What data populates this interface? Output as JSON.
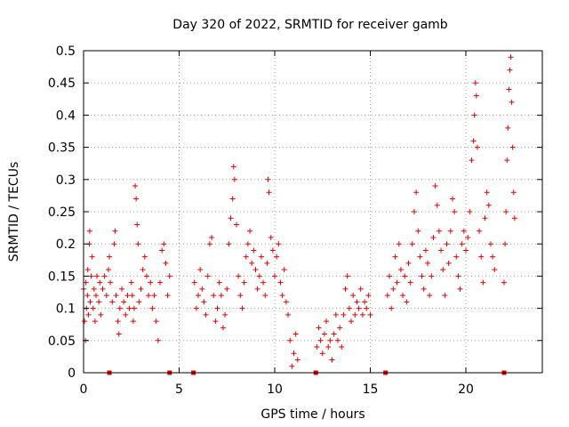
{
  "chart_data": {
    "type": "scatter",
    "title": "Day 320 of 2022, SRMTID for receiver gamb",
    "xlabel": "GPS time / hours",
    "ylabel": "SRMTID / TECUs",
    "xlim": [
      0,
      24
    ],
    "ylim": [
      0,
      0.5
    ],
    "xticks": [
      0,
      5,
      10,
      15,
      20
    ],
    "xtick_labels": [
      "0",
      "5",
      "10",
      "15",
      "20"
    ],
    "yticks": [
      0,
      0.05,
      0.1,
      0.15,
      0.2,
      0.25,
      0.3,
      0.35,
      0.4,
      0.45,
      0.5
    ],
    "ytick_labels": [
      "0",
      "0.05",
      "0.1",
      "0.15",
      "0.2",
      "0.25",
      "0.3",
      "0.35",
      "0.4",
      "0.45",
      "0.5"
    ],
    "grid": true,
    "series": [
      {
        "name": "SRMTID",
        "marker": "plus",
        "color": "#e60000",
        "points": [
          [
            0.0,
            0.13
          ],
          [
            0.05,
            0.08
          ],
          [
            0.1,
            0.05
          ],
          [
            0.12,
            0.14
          ],
          [
            0.15,
            0.1
          ],
          [
            0.2,
            0.12
          ],
          [
            0.22,
            0.16
          ],
          [
            0.25,
            0.09
          ],
          [
            0.3,
            0.2
          ],
          [
            0.32,
            0.22
          ],
          [
            0.35,
            0.11
          ],
          [
            0.4,
            0.15
          ],
          [
            0.45,
            0.18
          ],
          [
            0.5,
            0.1
          ],
          [
            0.55,
            0.13
          ],
          [
            0.6,
            0.08
          ],
          [
            0.65,
            0.12
          ],
          [
            0.7,
            0.15
          ],
          [
            0.8,
            0.11
          ],
          [
            0.85,
            0.14
          ],
          [
            0.9,
            0.09
          ],
          [
            1.0,
            0.13
          ],
          [
            1.1,
            0.15
          ],
          [
            1.2,
            0.12
          ],
          [
            1.3,
            0.16
          ],
          [
            1.35,
            0.18
          ],
          [
            1.4,
            0.14
          ],
          [
            1.5,
            0.11
          ],
          [
            1.6,
            0.2
          ],
          [
            1.65,
            0.22
          ],
          [
            1.7,
            0.12
          ],
          [
            1.8,
            0.08
          ],
          [
            1.85,
            0.06
          ],
          [
            1.9,
            0.1
          ],
          [
            2.0,
            0.13
          ],
          [
            2.1,
            0.11
          ],
          [
            2.2,
            0.09
          ],
          [
            2.3,
            0.12
          ],
          [
            2.4,
            0.1
          ],
          [
            2.5,
            0.14
          ],
          [
            2.55,
            0.12
          ],
          [
            2.6,
            0.08
          ],
          [
            2.65,
            0.1
          ],
          [
            2.7,
            0.29
          ],
          [
            2.75,
            0.27
          ],
          [
            2.8,
            0.23
          ],
          [
            2.85,
            0.2
          ],
          [
            2.9,
            0.11
          ],
          [
            3.0,
            0.13
          ],
          [
            3.1,
            0.16
          ],
          [
            3.2,
            0.18
          ],
          [
            3.3,
            0.15
          ],
          [
            3.4,
            0.12
          ],
          [
            3.5,
            0.14
          ],
          [
            3.6,
            0.1
          ],
          [
            3.7,
            0.12
          ],
          [
            3.8,
            0.08
          ],
          [
            3.9,
            0.05
          ],
          [
            4.0,
            0.14
          ],
          [
            4.1,
            0.19
          ],
          [
            4.2,
            0.2
          ],
          [
            4.3,
            0.17
          ],
          [
            4.4,
            0.12
          ],
          [
            4.5,
            0.15
          ],
          [
            5.8,
            0.14
          ],
          [
            5.9,
            0.1
          ],
          [
            6.0,
            0.12
          ],
          [
            6.1,
            0.16
          ],
          [
            6.2,
            0.13
          ],
          [
            6.3,
            0.11
          ],
          [
            6.4,
            0.09
          ],
          [
            6.5,
            0.15
          ],
          [
            6.6,
            0.2
          ],
          [
            6.7,
            0.21
          ],
          [
            6.8,
            0.12
          ],
          [
            6.9,
            0.08
          ],
          [
            7.0,
            0.1
          ],
          [
            7.1,
            0.14
          ],
          [
            7.2,
            0.12
          ],
          [
            7.3,
            0.07
          ],
          [
            7.4,
            0.09
          ],
          [
            7.5,
            0.13
          ],
          [
            7.6,
            0.2
          ],
          [
            7.7,
            0.24
          ],
          [
            7.8,
            0.27
          ],
          [
            7.85,
            0.32
          ],
          [
            7.9,
            0.3
          ],
          [
            8.0,
            0.23
          ],
          [
            8.1,
            0.15
          ],
          [
            8.2,
            0.12
          ],
          [
            8.3,
            0.1
          ],
          [
            8.4,
            0.14
          ],
          [
            8.5,
            0.18
          ],
          [
            8.6,
            0.2
          ],
          [
            8.7,
            0.22
          ],
          [
            8.8,
            0.17
          ],
          [
            8.9,
            0.19
          ],
          [
            9.0,
            0.16
          ],
          [
            9.1,
            0.13
          ],
          [
            9.2,
            0.15
          ],
          [
            9.3,
            0.18
          ],
          [
            9.4,
            0.14
          ],
          [
            9.5,
            0.12
          ],
          [
            9.6,
            0.17
          ],
          [
            9.65,
            0.3
          ],
          [
            9.7,
            0.28
          ],
          [
            9.8,
            0.21
          ],
          [
            9.9,
            0.19
          ],
          [
            10.0,
            0.15
          ],
          [
            10.1,
            0.18
          ],
          [
            10.2,
            0.2
          ],
          [
            10.3,
            0.14
          ],
          [
            10.4,
            0.12
          ],
          [
            10.5,
            0.16
          ],
          [
            10.6,
            0.11
          ],
          [
            10.7,
            0.09
          ],
          [
            10.8,
            0.05
          ],
          [
            10.9,
            0.01
          ],
          [
            11.0,
            0.03
          ],
          [
            11.1,
            0.06
          ],
          [
            11.2,
            0.02
          ],
          [
            12.2,
            0.04
          ],
          [
            12.3,
            0.07
          ],
          [
            12.4,
            0.05
          ],
          [
            12.5,
            0.03
          ],
          [
            12.6,
            0.06
          ],
          [
            12.7,
            0.08
          ],
          [
            12.8,
            0.04
          ],
          [
            12.9,
            0.05
          ],
          [
            13.0,
            0.02
          ],
          [
            13.1,
            0.06
          ],
          [
            13.2,
            0.09
          ],
          [
            13.3,
            0.05
          ],
          [
            13.4,
            0.07
          ],
          [
            13.5,
            0.04
          ],
          [
            13.6,
            0.09
          ],
          [
            13.7,
            0.13
          ],
          [
            13.8,
            0.15
          ],
          [
            13.9,
            0.1
          ],
          [
            14.0,
            0.08
          ],
          [
            14.1,
            0.12
          ],
          [
            14.2,
            0.09
          ],
          [
            14.3,
            0.11
          ],
          [
            14.4,
            0.1
          ],
          [
            14.5,
            0.13
          ],
          [
            14.6,
            0.09
          ],
          [
            14.7,
            0.11
          ],
          [
            14.8,
            0.1
          ],
          [
            14.9,
            0.12
          ],
          [
            15.0,
            0.09
          ],
          [
            15.9,
            0.12
          ],
          [
            16.0,
            0.15
          ],
          [
            16.1,
            0.1
          ],
          [
            16.2,
            0.13
          ],
          [
            16.3,
            0.18
          ],
          [
            16.4,
            0.14
          ],
          [
            16.5,
            0.2
          ],
          [
            16.6,
            0.16
          ],
          [
            16.7,
            0.12
          ],
          [
            16.8,
            0.15
          ],
          [
            16.9,
            0.11
          ],
          [
            17.0,
            0.17
          ],
          [
            17.1,
            0.14
          ],
          [
            17.2,
            0.2
          ],
          [
            17.3,
            0.25
          ],
          [
            17.4,
            0.28
          ],
          [
            17.5,
            0.22
          ],
          [
            17.6,
            0.18
          ],
          [
            17.7,
            0.15
          ],
          [
            17.8,
            0.13
          ],
          [
            17.9,
            0.19
          ],
          [
            18.0,
            0.17
          ],
          [
            18.1,
            0.12
          ],
          [
            18.2,
            0.15
          ],
          [
            18.3,
            0.21
          ],
          [
            18.4,
            0.29
          ],
          [
            18.5,
            0.26
          ],
          [
            18.6,
            0.22
          ],
          [
            18.7,
            0.19
          ],
          [
            18.8,
            0.16
          ],
          [
            18.9,
            0.12
          ],
          [
            19.0,
            0.2
          ],
          [
            19.1,
            0.17
          ],
          [
            19.2,
            0.22
          ],
          [
            19.3,
            0.27
          ],
          [
            19.4,
            0.25
          ],
          [
            19.5,
            0.18
          ],
          [
            19.6,
            0.15
          ],
          [
            19.7,
            0.13
          ],
          [
            19.8,
            0.2
          ],
          [
            19.9,
            0.22
          ],
          [
            20.0,
            0.19
          ],
          [
            20.1,
            0.21
          ],
          [
            20.2,
            0.25
          ],
          [
            20.3,
            0.33
          ],
          [
            20.4,
            0.36
          ],
          [
            20.45,
            0.4
          ],
          [
            20.5,
            0.45
          ],
          [
            20.55,
            0.43
          ],
          [
            20.6,
            0.35
          ],
          [
            20.7,
            0.22
          ],
          [
            20.8,
            0.18
          ],
          [
            20.9,
            0.14
          ],
          [
            21.0,
            0.24
          ],
          [
            21.1,
            0.28
          ],
          [
            21.2,
            0.26
          ],
          [
            21.3,
            0.2
          ],
          [
            21.4,
            0.18
          ],
          [
            21.5,
            0.16
          ],
          [
            22.0,
            0.14
          ],
          [
            22.05,
            0.2
          ],
          [
            22.1,
            0.25
          ],
          [
            22.15,
            0.33
          ],
          [
            22.2,
            0.38
          ],
          [
            22.25,
            0.44
          ],
          [
            22.3,
            0.47
          ],
          [
            22.35,
            0.49
          ],
          [
            22.4,
            0.42
          ],
          [
            22.45,
            0.35
          ],
          [
            22.5,
            0.28
          ],
          [
            22.55,
            0.24
          ]
        ]
      }
    ],
    "gap_markers_x": [
      1.35,
      4.5,
      5.75,
      12.15,
      15.8,
      22.0
    ]
  }
}
